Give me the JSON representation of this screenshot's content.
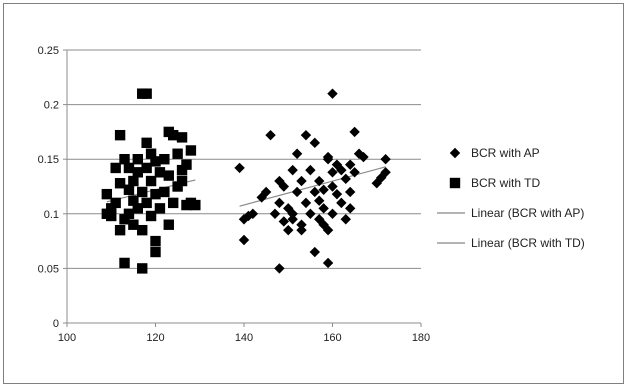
{
  "chart_data": {
    "type": "scatter",
    "title": "",
    "xlabel": "",
    "ylabel": "",
    "xlim": [
      100,
      180
    ],
    "ylim": [
      0,
      0.25
    ],
    "x_ticks": [
      "100",
      "120",
      "140",
      "160",
      "180"
    ],
    "y_ticks": [
      "0",
      "0.05",
      "0.1",
      "0.15",
      "0.2",
      "0.25"
    ],
    "grid": "horizontal major gridlines",
    "legend_position": "right",
    "series": [
      {
        "name": "BCR with AP",
        "marker": "diamond",
        "color": "#000000",
        "points": [
          [
            139,
            0.142
          ],
          [
            140,
            0.076
          ],
          [
            140,
            0.095
          ],
          [
            142,
            0.1
          ],
          [
            141,
            0.098
          ],
          [
            144,
            0.115
          ],
          [
            145,
            0.12
          ],
          [
            146,
            0.172
          ],
          [
            147,
            0.1
          ],
          [
            148,
            0.05
          ],
          [
            148,
            0.11
          ],
          [
            148,
            0.13
          ],
          [
            149,
            0.093
          ],
          [
            149,
            0.125
          ],
          [
            150,
            0.105
          ],
          [
            150,
            0.085
          ],
          [
            151,
            0.14
          ],
          [
            151,
            0.1
          ],
          [
            151,
            0.095
          ],
          [
            152,
            0.12
          ],
          [
            152,
            0.155
          ],
          [
            153,
            0.09
          ],
          [
            153,
            0.13
          ],
          [
            153,
            0.085
          ],
          [
            154,
            0.172
          ],
          [
            154,
            0.11
          ],
          [
            155,
            0.14
          ],
          [
            155,
            0.1
          ],
          [
            156,
            0.12
          ],
          [
            156,
            0.165
          ],
          [
            156,
            0.065
          ],
          [
            157,
            0.095
          ],
          [
            157,
            0.112
          ],
          [
            157,
            0.13
          ],
          [
            158,
            0.09
          ],
          [
            158,
            0.105
          ],
          [
            158,
            0.122
          ],
          [
            159,
            0.152
          ],
          [
            159,
            0.15
          ],
          [
            159,
            0.055
          ],
          [
            159,
            0.085
          ],
          [
            160,
            0.21
          ],
          [
            160,
            0.138
          ],
          [
            160,
            0.1
          ],
          [
            160,
            0.125
          ],
          [
            161,
            0.145
          ],
          [
            161,
            0.118
          ],
          [
            162,
            0.14
          ],
          [
            162,
            0.11
          ],
          [
            163,
            0.132
          ],
          [
            163,
            0.095
          ],
          [
            164,
            0.145
          ],
          [
            164,
            0.12
          ],
          [
            164,
            0.105
          ],
          [
            165,
            0.175
          ],
          [
            165,
            0.138
          ],
          [
            166,
            0.155
          ],
          [
            167,
            0.152
          ],
          [
            170,
            0.128
          ],
          [
            171,
            0.133
          ],
          [
            172,
            0.15
          ],
          [
            172,
            0.138
          ]
        ]
      },
      {
        "name": "BCR with TD",
        "marker": "square",
        "color": "#000000",
        "points": [
          [
            109,
            0.1
          ],
          [
            109,
            0.118
          ],
          [
            110,
            0.105
          ],
          [
            110,
            0.098
          ],
          [
            111,
            0.11
          ],
          [
            111,
            0.142
          ],
          [
            112,
            0.172
          ],
          [
            112,
            0.085
          ],
          [
            112,
            0.128
          ],
          [
            113,
            0.15
          ],
          [
            113,
            0.055
          ],
          [
            113,
            0.095
          ],
          [
            114,
            0.122
          ],
          [
            114,
            0.1
          ],
          [
            114,
            0.142
          ],
          [
            115,
            0.13
          ],
          [
            115,
            0.112
          ],
          [
            115,
            0.09
          ],
          [
            116,
            0.138
          ],
          [
            116,
            0.15
          ],
          [
            116,
            0.105
          ],
          [
            117,
            0.05
          ],
          [
            117,
            0.21
          ],
          [
            117,
            0.12
          ],
          [
            117,
            0.085
          ],
          [
            118,
            0.21
          ],
          [
            118,
            0.165
          ],
          [
            118,
            0.142
          ],
          [
            118,
            0.11
          ],
          [
            119,
            0.155
          ],
          [
            119,
            0.13
          ],
          [
            119,
            0.098
          ],
          [
            120,
            0.075
          ],
          [
            120,
            0.065
          ],
          [
            120,
            0.148
          ],
          [
            120,
            0.118
          ],
          [
            121,
            0.138
          ],
          [
            121,
            0.105
          ],
          [
            122,
            0.15
          ],
          [
            122,
            0.12
          ],
          [
            123,
            0.175
          ],
          [
            123,
            0.09
          ],
          [
            123,
            0.135
          ],
          [
            124,
            0.11
          ],
          [
            124,
            0.172
          ],
          [
            125,
            0.155
          ],
          [
            125,
            0.125
          ],
          [
            126,
            0.17
          ],
          [
            126,
            0.14
          ],
          [
            126,
            0.13
          ],
          [
            127,
            0.145
          ],
          [
            127,
            0.108
          ],
          [
            128,
            0.158
          ],
          [
            128,
            0.11
          ],
          [
            129,
            0.108
          ]
        ]
      }
    ],
    "trendlines": [
      {
        "name": "Linear (BCR with AP)",
        "series": "BCR with AP",
        "x": [
          139,
          172
        ],
        "y": [
          0.107,
          0.143
        ],
        "color": "#888888"
      },
      {
        "name": "Linear (BCR with TD)",
        "series": "BCR with TD",
        "x": [
          109,
          129
        ],
        "y": [
          0.111,
          0.131
        ],
        "color": "#888888"
      }
    ]
  }
}
